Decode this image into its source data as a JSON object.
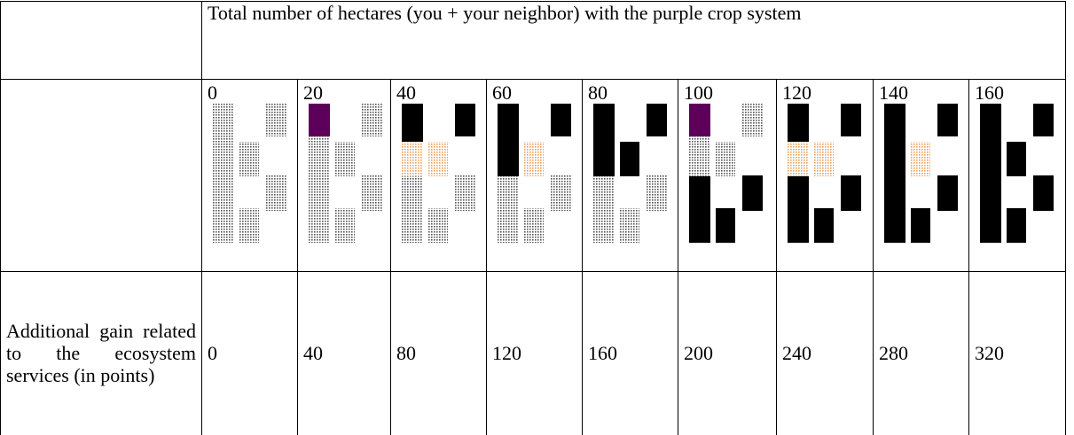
{
  "table": {
    "header": "Total  number of hectares (you + your neighbor) with the purple crop system",
    "columns": [
      0,
      20,
      40,
      60,
      80,
      100,
      120,
      140,
      160
    ],
    "row_label": "Additional gain related to the ecosystem services (in points)",
    "row_values": [
      0,
      40,
      80,
      120,
      160,
      200,
      240,
      280,
      320
    ]
  }
}
